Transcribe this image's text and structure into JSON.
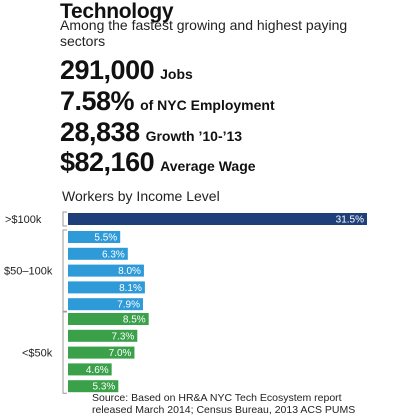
{
  "header": {
    "title": "Technology",
    "subtitle": "Among the fastest growing and highest paying sectors"
  },
  "stats": [
    {
      "value": "291,000",
      "label": "Jobs"
    },
    {
      "value": "7.58%",
      "label": "of NYC Employment"
    },
    {
      "value": "28,838",
      "label": "Growth ’10-’13"
    },
    {
      "value": "$82,160",
      "label": "Average Wage"
    }
  ],
  "source": {
    "line1": "Source: Based on HR&A NYC Tech Ecosystem report",
    "line2": "released March 2014; Census Bureau, 2013 ACS PUMS"
  },
  "colors": {
    "high": "#1f3f7a",
    "mid": "#2f9ad8",
    "low": "#3aa04a"
  },
  "chart_data": {
    "type": "bar",
    "orientation": "horizontal",
    "title": "Workers by Income Level",
    "xlim": [
      0,
      31.5
    ],
    "groups": [
      {
        "label": ">$100k",
        "color_key": "high",
        "values": [
          31.5
        ]
      },
      {
        "label": "$50–100k",
        "color_key": "mid",
        "values": [
          5.5,
          6.3,
          8.0,
          8.1,
          7.9
        ]
      },
      {
        "label": "<$50k",
        "color_key": "low",
        "values": [
          8.5,
          7.3,
          7.0,
          4.6,
          5.3
        ]
      }
    ]
  }
}
